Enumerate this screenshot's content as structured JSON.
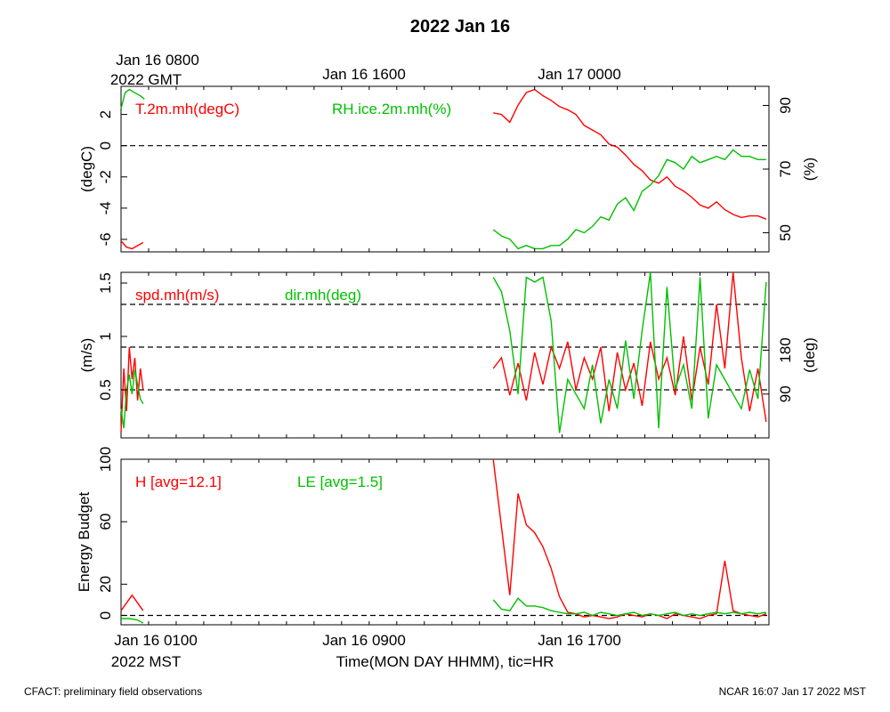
{
  "title": "2022 Jan 16",
  "gmt_ticks": [
    {
      "label": "Jan 16 0800",
      "sub": "2022 GMT",
      "hour": 0
    },
    {
      "label": "Jan 16 1600",
      "sub": "",
      "hour": 8
    },
    {
      "label": "Jan 17 0000",
      "sub": "",
      "hour": 16
    }
  ],
  "mst_ticks": [
    {
      "label": "Jan 16 0100",
      "sub": "2022 MST",
      "hour": 0
    },
    {
      "label": "Jan 16 0900",
      "sub": "",
      "hour": 8
    },
    {
      "label": "Jan 16 1700",
      "sub": "",
      "hour": 16
    }
  ],
  "xlabel": "Time(MON DAY HHMM), tic=HR",
  "footer_left": "CFACT: preliminary field observations",
  "footer_right": "NCAR 16:07 Jan 17 2022 MST",
  "colors": {
    "red": "#ff0000",
    "green": "#00c000",
    "axis": "#000000"
  },
  "chart_data": [
    {
      "type": "line",
      "x_unit": "hours since Jan 16 0100 MST",
      "xlim": [
        0,
        23.5
      ],
      "ylim": [
        -6.8,
        3.8
      ],
      "ylabel": "(degC)",
      "yticks": [
        -6,
        -4,
        -2,
        0,
        2
      ],
      "y2lim": [
        44,
        96
      ],
      "y2label": "(%)",
      "y2ticks": [
        50,
        70,
        90
      ],
      "hlines": [
        0
      ],
      "series": [
        {
          "name": "T.2m.mh(degC)",
          "color": "#ff0000",
          "axis": "left",
          "x": [
            0,
            0.2,
            0.4,
            0.6,
            0.8
          ],
          "y": [
            -6.1,
            -6.5,
            -6.6,
            -6.4,
            -6.2
          ]
        },
        {
          "name": "T.2m.mh(degC)",
          "color": "#ff0000",
          "axis": "left",
          "x": [
            13.5,
            13.8,
            14.1,
            14.4,
            14.7,
            15.0,
            15.3,
            15.6,
            15.9,
            16.2,
            16.5,
            16.8,
            17.1,
            17.4,
            17.7,
            18.0,
            18.3,
            18.6,
            18.9,
            19.2,
            19.5,
            19.8,
            20.1,
            20.4,
            20.7,
            21.0,
            21.3,
            21.6,
            21.9,
            22.2,
            22.5,
            22.8,
            23.1,
            23.4
          ],
          "y": [
            2.1,
            2.0,
            1.5,
            2.6,
            3.4,
            3.6,
            3.2,
            2.9,
            2.5,
            2.3,
            2.0,
            1.3,
            1.0,
            0.7,
            0.1,
            -0.1,
            -0.6,
            -1.2,
            -1.6,
            -2.2,
            -2.4,
            -2.0,
            -2.6,
            -2.9,
            -3.3,
            -3.8,
            -4.0,
            -3.6,
            -4.1,
            -4.4,
            -4.6,
            -4.5,
            -4.5,
            -4.7
          ]
        },
        {
          "name": "RH.ice.2m.mh(%)",
          "color": "#00c000",
          "axis": "right",
          "x": [
            0,
            0.15,
            0.3,
            0.5,
            0.7,
            0.85
          ],
          "y": [
            89,
            94,
            95,
            94,
            93,
            92
          ]
        },
        {
          "name": "RH.ice.2m.mh(%)",
          "color": "#00c000",
          "axis": "right",
          "x": [
            13.5,
            13.8,
            14.1,
            14.4,
            14.7,
            15.0,
            15.3,
            15.6,
            15.9,
            16.2,
            16.5,
            16.8,
            17.1,
            17.4,
            17.7,
            18.0,
            18.3,
            18.6,
            18.9,
            19.2,
            19.5,
            19.8,
            20.1,
            20.4,
            20.7,
            21.0,
            21.3,
            21.6,
            21.9,
            22.2,
            22.5,
            22.8,
            23.1,
            23.4
          ],
          "y": [
            51,
            49,
            48,
            45,
            46,
            45,
            45,
            46,
            46,
            48,
            51,
            50,
            52,
            55,
            54,
            59,
            61,
            57,
            63,
            65,
            68,
            73,
            72,
            70,
            74,
            72,
            73,
            74,
            73,
            76,
            74,
            74,
            73,
            73
          ]
        }
      ]
    },
    {
      "type": "line",
      "x_unit": "hours since Jan 16 0100 MST",
      "xlim": [
        0,
        23.5
      ],
      "ylim": [
        0.05,
        1.6
      ],
      "ylabel": "(m/s)",
      "yticks": [
        0.5,
        1.0,
        1.5
      ],
      "y2lim": [
        0,
        340
      ],
      "y2label": "(deg)",
      "y2ticks": [
        90,
        180
      ],
      "hlines": [
        0.5,
        0.9,
        1.3
      ],
      "series": [
        {
          "name": "spd.mh(m/s)",
          "color": "#ff0000",
          "axis": "left",
          "x": [
            0,
            0.1,
            0.2,
            0.3,
            0.4,
            0.5,
            0.6,
            0.7,
            0.8
          ],
          "y": [
            0.1,
            0.7,
            0.3,
            0.9,
            0.6,
            0.8,
            0.4,
            0.7,
            0.5
          ]
        },
        {
          "name": "spd.mh(m/s)",
          "color": "#ff0000",
          "axis": "left",
          "x": [
            13.5,
            13.8,
            14.1,
            14.4,
            14.7,
            15.0,
            15.3,
            15.6,
            15.9,
            16.2,
            16.5,
            16.8,
            17.1,
            17.4,
            17.7,
            18.0,
            18.3,
            18.6,
            18.9,
            19.2,
            19.5,
            19.8,
            20.1,
            20.4,
            20.7,
            21.0,
            21.3,
            21.6,
            21.9,
            22.2,
            22.5,
            22.8,
            23.1,
            23.4
          ],
          "y": [
            0.7,
            0.8,
            0.45,
            0.75,
            0.4,
            0.85,
            0.55,
            0.9,
            0.7,
            0.95,
            0.5,
            0.8,
            0.6,
            0.9,
            0.3,
            0.85,
            0.5,
            0.75,
            0.35,
            0.95,
            0.6,
            0.8,
            0.45,
            1.0,
            0.4,
            0.9,
            0.55,
            1.3,
            0.7,
            1.6,
            0.8,
            0.3,
            0.7,
            0.2
          ]
        },
        {
          "name": "dir.mh(deg)",
          "color": "#00c000",
          "axis": "right",
          "x": [
            0,
            0.1,
            0.2,
            0.3,
            0.4,
            0.5,
            0.6,
            0.7,
            0.8
          ],
          "y": [
            60,
            20,
            100,
            130,
            90,
            140,
            110,
            80,
            70
          ]
        },
        {
          "name": "dir.mh(deg)",
          "color": "#00c000",
          "axis": "right",
          "x": [
            13.5,
            13.8,
            14.1,
            14.4,
            14.7,
            15.0,
            15.3,
            15.6,
            15.9,
            16.2,
            16.5,
            16.8,
            17.1,
            17.4,
            17.7,
            18.0,
            18.3,
            18.6,
            18.9,
            19.2,
            19.5,
            19.8,
            20.1,
            20.4,
            20.7,
            21.0,
            21.3,
            21.6,
            21.9,
            22.2,
            22.5,
            22.8,
            23.1,
            23.4
          ],
          "y": [
            330,
            300,
            220,
            90,
            330,
            320,
            330,
            240,
            10,
            120,
            90,
            60,
            150,
            30,
            120,
            60,
            200,
            80,
            220,
            340,
            20,
            310,
            100,
            150,
            60,
            330,
            40,
            150,
            120,
            90,
            60,
            140,
            80,
            320
          ]
        }
      ]
    },
    {
      "type": "line",
      "x_unit": "hours since Jan 16 0100 MST",
      "xlim": [
        0,
        23.5
      ],
      "ylim": [
        -6,
        100
      ],
      "ylabel": "Energy Budget",
      "yticks": [
        0,
        20,
        60,
        100
      ],
      "hlines": [
        0
      ],
      "series": [
        {
          "name": "H [avg=12.1]",
          "color": "#ff0000",
          "axis": "left",
          "x": [
            0,
            0.4,
            0.8
          ],
          "y": [
            3,
            13,
            3
          ]
        },
        {
          "name": "H [avg=12.1]",
          "color": "#ff0000",
          "axis": "left",
          "x": [
            13.5,
            14.1,
            14.4,
            14.7,
            15.0,
            15.3,
            15.6,
            15.9,
            16.2,
            16.5,
            16.8,
            17.1,
            17.4,
            17.7,
            18.0,
            18.3,
            18.6,
            18.9,
            19.2,
            19.5,
            19.8,
            20.1,
            20.4,
            20.7,
            21.0,
            21.3,
            21.6,
            21.9,
            22.2,
            22.5,
            22.8,
            23.1,
            23.4
          ],
          "y": [
            100,
            13,
            78,
            58,
            53,
            44,
            30,
            12,
            2,
            1,
            -1,
            0,
            -1,
            -2,
            -1,
            1,
            0,
            -1,
            1,
            0,
            -2,
            1,
            0,
            -1,
            -2,
            0,
            1,
            35,
            3,
            1,
            0,
            -1,
            1
          ]
        },
        {
          "name": "LE [avg=1.5]",
          "color": "#00c000",
          "axis": "left",
          "x": [
            0,
            0.3,
            0.6,
            0.8
          ],
          "y": [
            -2,
            -2,
            -3,
            -5
          ]
        },
        {
          "name": "LE [avg=1.5]",
          "color": "#00c000",
          "axis": "left",
          "x": [
            13.5,
            13.8,
            14.1,
            14.4,
            14.7,
            15.0,
            15.3,
            15.6,
            15.9,
            16.2,
            16.5,
            16.8,
            17.1,
            17.4,
            17.7,
            18.0,
            18.3,
            18.6,
            18.9,
            19.2,
            19.5,
            19.8,
            20.1,
            20.4,
            20.7,
            21.0,
            21.3,
            21.6,
            21.9,
            22.2,
            22.5,
            22.8,
            23.1,
            23.4
          ],
          "y": [
            10,
            4,
            3,
            11,
            6,
            6,
            5,
            3,
            2,
            1,
            1,
            2,
            0,
            2,
            1,
            0,
            1,
            2,
            0,
            1,
            0,
            1,
            2,
            0,
            1,
            0,
            1,
            2,
            1,
            2,
            1,
            2,
            1,
            2
          ]
        }
      ]
    }
  ]
}
